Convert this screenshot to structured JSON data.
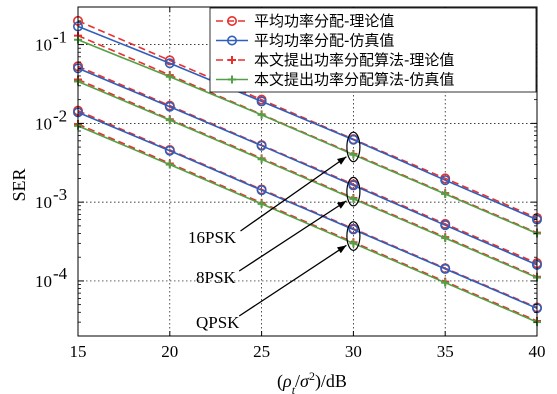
{
  "chart_data": {
    "type": "line",
    "xlabel": "(ρ_t/σ²)/dB",
    "ylabel": "SER",
    "xlim": [
      15,
      40
    ],
    "ylim": [
      2e-05,
      0.3
    ],
    "yscale": "log",
    "grid": true,
    "legend_position": "top-right",
    "x_ticks": [
      "15",
      "20",
      "25",
      "30",
      "35",
      "40"
    ],
    "y_ticks": [
      {
        "value": 0.1,
        "mant": "10",
        "exp": "-1"
      },
      {
        "value": 0.01,
        "mant": "10",
        "exp": "-2"
      },
      {
        "value": 0.001,
        "mant": "10",
        "exp": "-3"
      },
      {
        "value": 0.0001,
        "mant": "10",
        "exp": "-4"
      }
    ],
    "x": [
      15,
      20,
      25,
      30,
      35,
      40
    ],
    "series": [
      {
        "name": "平均功率分配-理论值",
        "group": "16PSK",
        "color": "#e8302c",
        "dash": true,
        "marker": "circle",
        "values": [
          0.2,
          0.063,
          0.02,
          0.0063,
          0.002,
          0.00063
        ]
      },
      {
        "name": "平均功率分配-仿真值",
        "group": "16PSK",
        "color": "#2f5fbb",
        "dash": false,
        "marker": "circle",
        "values": [
          0.17,
          0.058,
          0.019,
          0.0062,
          0.0019,
          0.0006
        ]
      },
      {
        "name": "本文提出功率分配算法-理论值",
        "group": "16PSK",
        "color": "#e8302c",
        "dash": true,
        "marker": "plus",
        "values": [
          0.13,
          0.041,
          0.013,
          0.0041,
          0.0013,
          0.00041
        ]
      },
      {
        "name": "本文提出功率分配算法-仿真值",
        "group": "16PSK",
        "color": "#54a046",
        "dash": false,
        "marker": "plus",
        "values": [
          0.115,
          0.039,
          0.0128,
          0.004,
          0.00127,
          0.0004
        ]
      },
      {
        "name": "",
        "group": "8PSK",
        "color": "#e8302c",
        "dash": true,
        "marker": "circle",
        "values": [
          0.053,
          0.0168,
          0.0053,
          0.00168,
          0.00053,
          0.000168
        ]
      },
      {
        "name": "",
        "group": "8PSK",
        "color": "#2f5fbb",
        "dash": false,
        "marker": "circle",
        "values": [
          0.05,
          0.0163,
          0.0052,
          0.00163,
          0.00051,
          0.00016
        ]
      },
      {
        "name": "",
        "group": "8PSK",
        "color": "#e8302c",
        "dash": true,
        "marker": "plus",
        "values": [
          0.036,
          0.0113,
          0.0036,
          0.00113,
          0.00036,
          0.000113
        ]
      },
      {
        "name": "",
        "group": "8PSK",
        "color": "#54a046",
        "dash": false,
        "marker": "plus",
        "values": [
          0.034,
          0.011,
          0.0035,
          0.0011,
          0.00035,
          0.00011
        ]
      },
      {
        "name": "",
        "group": "QPSK",
        "color": "#e8302c",
        "dash": true,
        "marker": "circle",
        "values": [
          0.0145,
          0.0046,
          0.00145,
          0.00046,
          0.000145,
          4.6e-05
        ]
      },
      {
        "name": "",
        "group": "QPSK",
        "color": "#2f5fbb",
        "dash": false,
        "marker": "circle",
        "values": [
          0.0138,
          0.0045,
          0.00142,
          0.00045,
          0.000142,
          4.5e-05
        ]
      },
      {
        "name": "",
        "group": "QPSK",
        "color": "#e8302c",
        "dash": true,
        "marker": "plus",
        "values": [
          0.0098,
          0.0031,
          0.00098,
          0.00031,
          9.8e-05,
          3.1e-05
        ]
      },
      {
        "name": "",
        "group": "QPSK",
        "color": "#54a046",
        "dash": false,
        "marker": "plus",
        "values": [
          0.0093,
          0.003,
          0.00095,
          0.0003,
          9.5e-05,
          3e-05
        ]
      }
    ],
    "annotations": [
      {
        "text": "16PSK",
        "group": "16PSK"
      },
      {
        "text": "8PSK",
        "group": "8PSK"
      },
      {
        "text": "QPSK",
        "group": "QPSK"
      }
    ]
  }
}
